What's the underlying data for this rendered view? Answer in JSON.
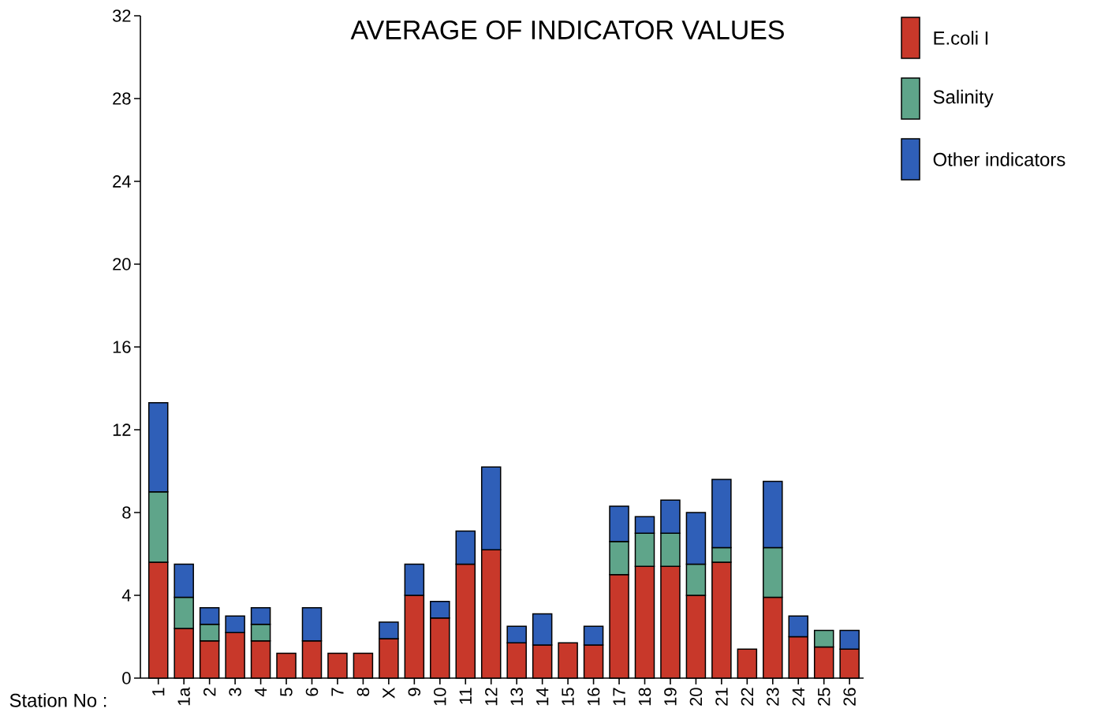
{
  "chart_data": {
    "type": "bar",
    "title": "AVERAGE OF INDICATOR VALUES",
    "xlabel": "Station No :",
    "categories": [
      "1",
      "1a",
      "2",
      "3",
      "4",
      "5",
      "6",
      "7",
      "8",
      "X",
      "9",
      "10",
      "11",
      "12",
      "13",
      "14",
      "15",
      "16",
      "17",
      "18",
      "19",
      "20",
      "21",
      "22",
      "23",
      "24",
      "25",
      "26"
    ],
    "stacked": true,
    "ylim": [
      0,
      32
    ],
    "yticks": [
      0,
      4,
      8,
      12,
      16,
      20,
      24,
      28,
      32
    ],
    "grid": false,
    "legend": "top right",
    "series": [
      {
        "name": "E.coli I",
        "color": "#c8382a",
        "values": [
          5.6,
          2.4,
          1.8,
          2.2,
          1.8,
          1.2,
          1.8,
          1.2,
          1.2,
          1.9,
          4.0,
          2.9,
          5.5,
          6.2,
          1.7,
          1.6,
          1.7,
          1.6,
          5.0,
          5.4,
          5.4,
          4.0,
          5.6,
          1.4,
          3.9,
          2.0,
          1.5,
          1.4
        ]
      },
      {
        "name": "Salinity",
        "color": "#5fa58a",
        "values": [
          3.4,
          1.5,
          0.8,
          null,
          0.8,
          null,
          null,
          null,
          null,
          null,
          null,
          null,
          null,
          null,
          null,
          null,
          null,
          null,
          1.6,
          1.6,
          1.6,
          1.5,
          0.7,
          null,
          2.4,
          null,
          0.8,
          null
        ]
      },
      {
        "name": "Other indicators",
        "color": "#2f5fb8",
        "values": [
          4.3,
          1.6,
          0.8,
          0.8,
          0.8,
          null,
          1.6,
          null,
          null,
          0.8,
          1.5,
          0.8,
          1.6,
          4.0,
          0.8,
          1.5,
          null,
          0.9,
          1.7,
          0.8,
          1.6,
          2.5,
          3.3,
          null,
          3.2,
          1.0,
          null,
          0.9
        ]
      }
    ]
  }
}
